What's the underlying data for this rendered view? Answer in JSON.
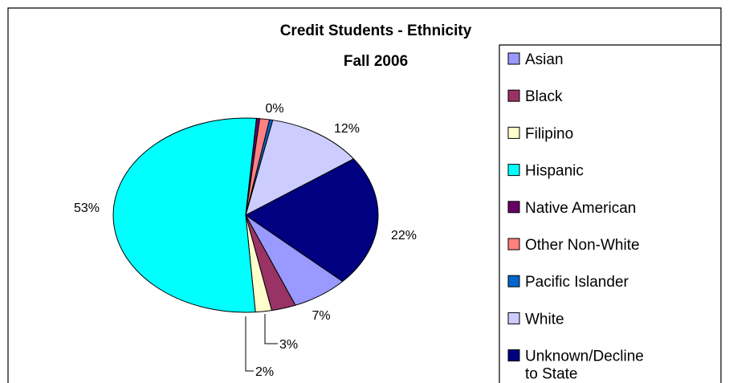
{
  "chart_data": {
    "type": "pie",
    "title": "Credit Students - Ethnicity",
    "subtitle": "Fall 2006",
    "legend_position": "right",
    "slices": [
      {
        "name": "Asian",
        "value": 7,
        "label": "7%",
        "color": "#9999ff"
      },
      {
        "name": "Black",
        "value": 3,
        "label": "3%",
        "color": "#993366"
      },
      {
        "name": "Filipino",
        "value": 2,
        "label": "2%",
        "color": "#ffffcc"
      },
      {
        "name": "Hispanic",
        "value": 53,
        "label": "53%",
        "color": "#00ffff"
      },
      {
        "name": "Native American",
        "value": 0.4,
        "label": "",
        "color": "#660066"
      },
      {
        "name": "Other Non-White",
        "value": 1.2,
        "label": "",
        "color": "#ff8080"
      },
      {
        "name": "Pacific Islander",
        "value": 0.4,
        "label": "0%",
        "color": "#0066cc"
      },
      {
        "name": "White",
        "value": 12,
        "label": "12%",
        "color": "#ccccff"
      },
      {
        "name": "Unknown/Decline to State",
        "value": 22,
        "label": "22%",
        "color": "#000080"
      }
    ]
  }
}
